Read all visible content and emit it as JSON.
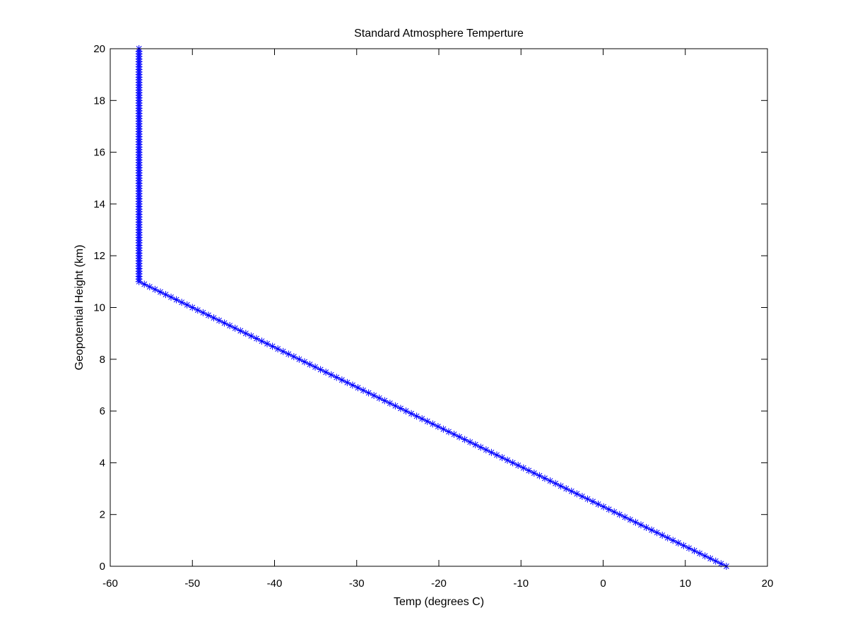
{
  "chart_data": {
    "type": "line",
    "title": "Standard Atmosphere Temperture",
    "xlabel": "Temp (degrees C)",
    "ylabel": "Geopotential Height (km)",
    "xlim": [
      -60,
      20
    ],
    "ylim": [
      0,
      20
    ],
    "xticks": [
      -60,
      -50,
      -40,
      -30,
      -20,
      -10,
      0,
      10,
      20
    ],
    "yticks": [
      0,
      2,
      4,
      6,
      8,
      10,
      12,
      14,
      16,
      18,
      20
    ],
    "grid": false,
    "legend": "none",
    "series": [
      {
        "color": "#0000ff",
        "marker": "asterisk",
        "lapse_rate_c_per_km": -6.5,
        "sample_step_km": 0.1,
        "points": [
          {
            "height_km": 0,
            "temp_c": 15.0
          },
          {
            "height_km": 11,
            "temp_c": -56.5
          },
          {
            "height_km": 20,
            "temp_c": -56.5
          }
        ]
      }
    ]
  }
}
